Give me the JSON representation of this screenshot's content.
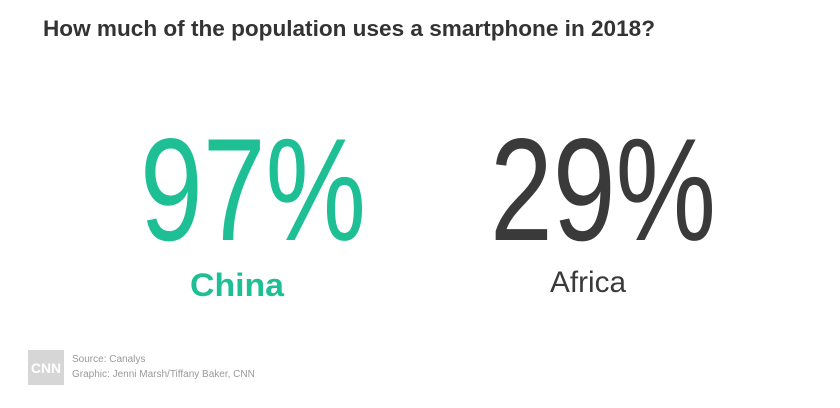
{
  "header": {
    "title": "How much of the population uses a smartphone in 2018?"
  },
  "stats": [
    {
      "value": "97%",
      "label": "China"
    },
    {
      "value": "29%",
      "label": "Africa"
    }
  ],
  "footer": {
    "logo": "CNN",
    "source": "Source: Canalys",
    "credit": "Graphic: Jenni Marsh/Tiffany Baker, CNN"
  }
}
